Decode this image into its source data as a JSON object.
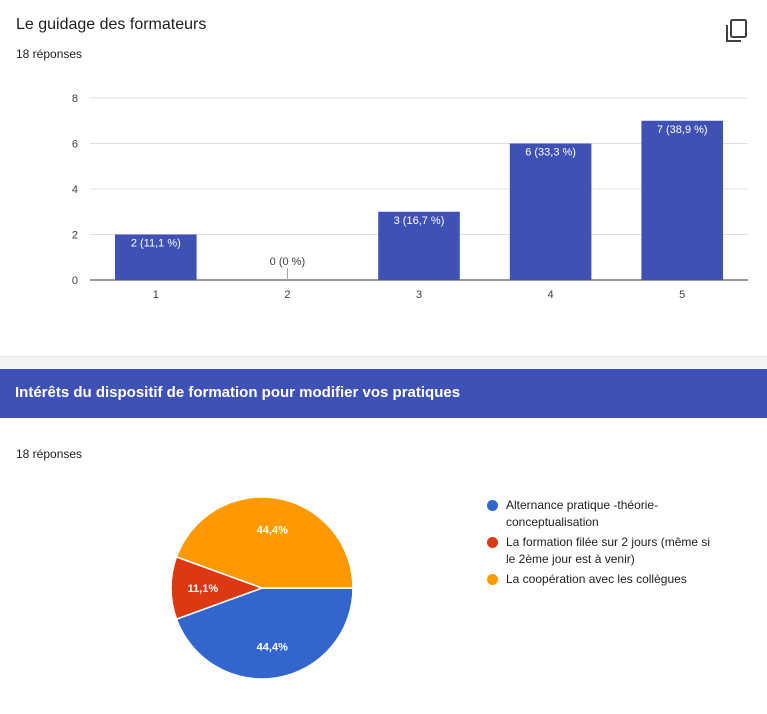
{
  "section1": {
    "title": "Le guidage des formateurs",
    "responses": "18 réponses",
    "copy_icon": "copy-icon"
  },
  "section2": {
    "title": "Intérêts du dispositif de formation pour modifier vos pratiques",
    "responses": "18 réponses"
  },
  "colors": {
    "bar": "#3f51b5",
    "banner": "#3f51b5",
    "slice_blue": "#3366cc",
    "slice_red": "#dc3912",
    "slice_orange": "#ff9900"
  },
  "chart_data": [
    {
      "type": "bar",
      "title": "Le guidage des formateurs",
      "categories": [
        "1",
        "2",
        "3",
        "4",
        "5"
      ],
      "values": [
        2,
        0,
        3,
        6,
        7
      ],
      "data_labels": [
        "2 (11,1 %)",
        "0 (0 %)",
        "3 (16,7 %)",
        "6 (33,3 %)",
        "7 (38,9 %)"
      ],
      "yticks": [
        "0",
        "2",
        "4",
        "6",
        "8"
      ],
      "ylim": [
        0,
        8
      ],
      "grid": true
    },
    {
      "type": "pie",
      "title": "Intérêts du dispositif de formation pour modifier vos pratiques",
      "series": [
        {
          "name": "Alternance pratique -théorie-conceptualisation",
          "value": 44.4,
          "label": "44,4%",
          "color": "#3366cc"
        },
        {
          "name": "La formation filée sur 2 jours (même si le 2ème jour est à venir)",
          "value": 11.1,
          "label": "11,1%",
          "color": "#dc3912"
        },
        {
          "name": "La coopération avec les collègues",
          "value": 44.4,
          "label": "44,4%",
          "color": "#ff9900"
        }
      ],
      "legend_lines": [
        [
          "Alternance pratique -théorie-",
          "conceptualisation"
        ],
        [
          "La formation filée sur 2 jours (même si",
          "le 2ème jour est à venir)"
        ],
        [
          "La coopération avec les collègues"
        ]
      ],
      "legend_position": "right"
    }
  ]
}
